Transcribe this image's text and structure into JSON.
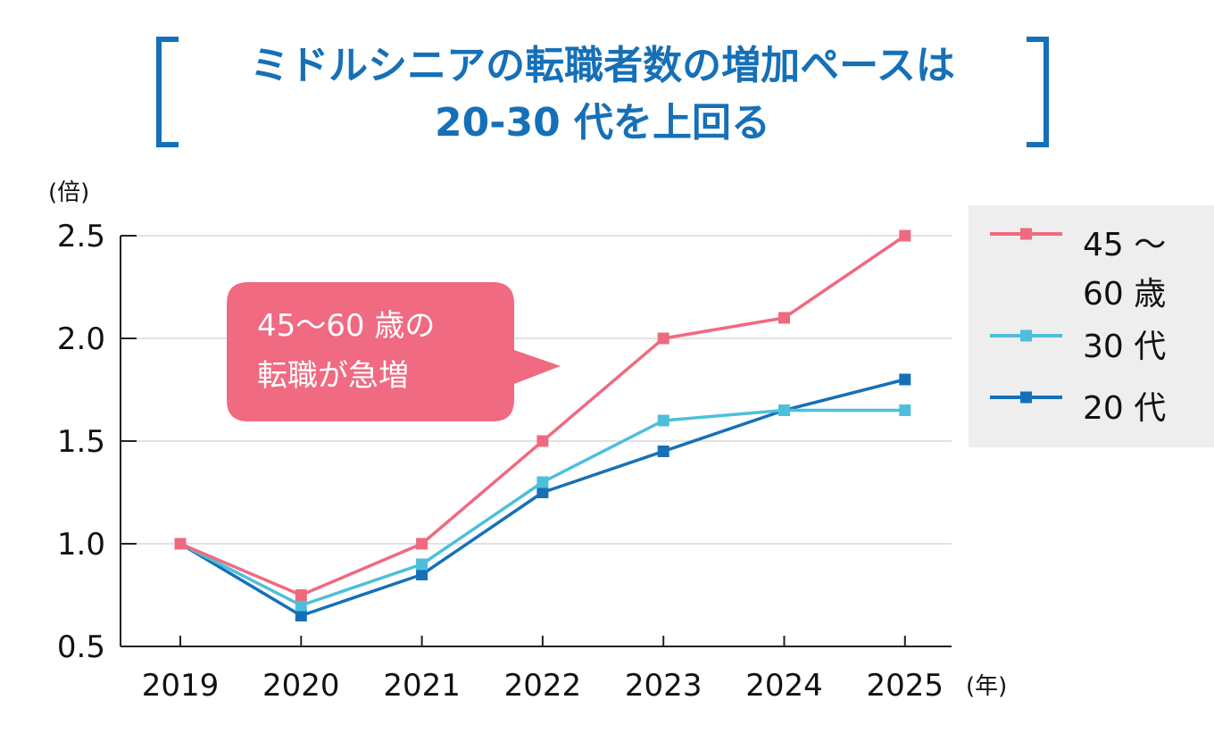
{
  "chart_data": {
    "type": "line",
    "title_lines": [
      "ミドルシニアの転職者数の増加ペースは",
      "20-30 代を上回る"
    ],
    "y_unit": "(倍)",
    "x_unit": "(年)",
    "categories": [
      "2019",
      "2020",
      "2021",
      "2022",
      "2023",
      "2024",
      "2025"
    ],
    "ylim": [
      0.5,
      2.5
    ],
    "y_ticks": [
      0.5,
      1.0,
      1.5,
      2.0,
      2.5
    ],
    "y_tick_labels": [
      "0.5",
      "1.0",
      "1.5",
      "2.0",
      "2.5"
    ],
    "grid": true,
    "legend_position": "right",
    "series": [
      {
        "key": "s45",
        "name_lines": [
          "45 ～",
          "60 歳"
        ],
        "color": "#ef6a80",
        "values": [
          1.0,
          0.75,
          1.0,
          1.5,
          2.0,
          2.1,
          2.5
        ]
      },
      {
        "key": "s30",
        "name_lines": [
          "30 代"
        ],
        "color": "#4dbfdb",
        "values": [
          1.0,
          0.7,
          0.9,
          1.3,
          1.6,
          1.65,
          1.65
        ]
      },
      {
        "key": "s20",
        "name_lines": [
          "20 代"
        ],
        "color": "#1570b8",
        "values": [
          1.0,
          0.65,
          0.85,
          1.25,
          1.45,
          1.65,
          1.8
        ]
      }
    ],
    "annotation": {
      "lines": [
        "45～60 歳の",
        "転職が急増"
      ],
      "color": "#f06a82"
    }
  }
}
